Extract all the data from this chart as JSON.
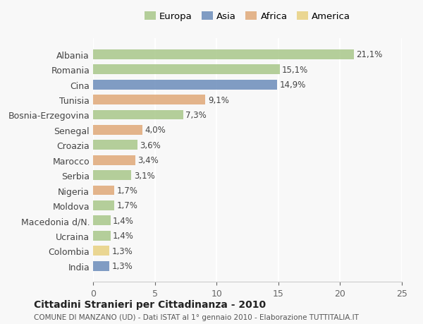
{
  "countries": [
    "Albania",
    "Romania",
    "Cina",
    "Tunisia",
    "Bosnia-Erzegovina",
    "Senegal",
    "Croazia",
    "Marocco",
    "Serbia",
    "Nigeria",
    "Moldova",
    "Macedonia d/N.",
    "Ucraina",
    "Colombia",
    "India"
  ],
  "values": [
    21.1,
    15.1,
    14.9,
    9.1,
    7.3,
    4.0,
    3.6,
    3.4,
    3.1,
    1.7,
    1.7,
    1.4,
    1.4,
    1.3,
    1.3
  ],
  "continents": [
    "Europa",
    "Europa",
    "Asia",
    "Africa",
    "Europa",
    "Africa",
    "Europa",
    "Africa",
    "Europa",
    "Africa",
    "Europa",
    "Europa",
    "Europa",
    "America",
    "Asia"
  ],
  "continent_colors": {
    "Europa": "#a8c78a",
    "Asia": "#6b8cba",
    "Africa": "#e0a878",
    "America": "#e8d080"
  },
  "legend_order": [
    "Europa",
    "Asia",
    "Africa",
    "America"
  ],
  "title_main": "Cittadini Stranieri per Cittadinanza - 2010",
  "title_sub": "COMUNE DI MANZANO (UD) - Dati ISTAT al 1° gennaio 2010 - Elaborazione TUTTITALIA.IT",
  "xlim": [
    0,
    25
  ],
  "xticks": [
    0,
    5,
    10,
    15,
    20,
    25
  ],
  "background_color": "#f8f8f8",
  "grid_color": "#ffffff",
  "bar_alpha": 0.85
}
